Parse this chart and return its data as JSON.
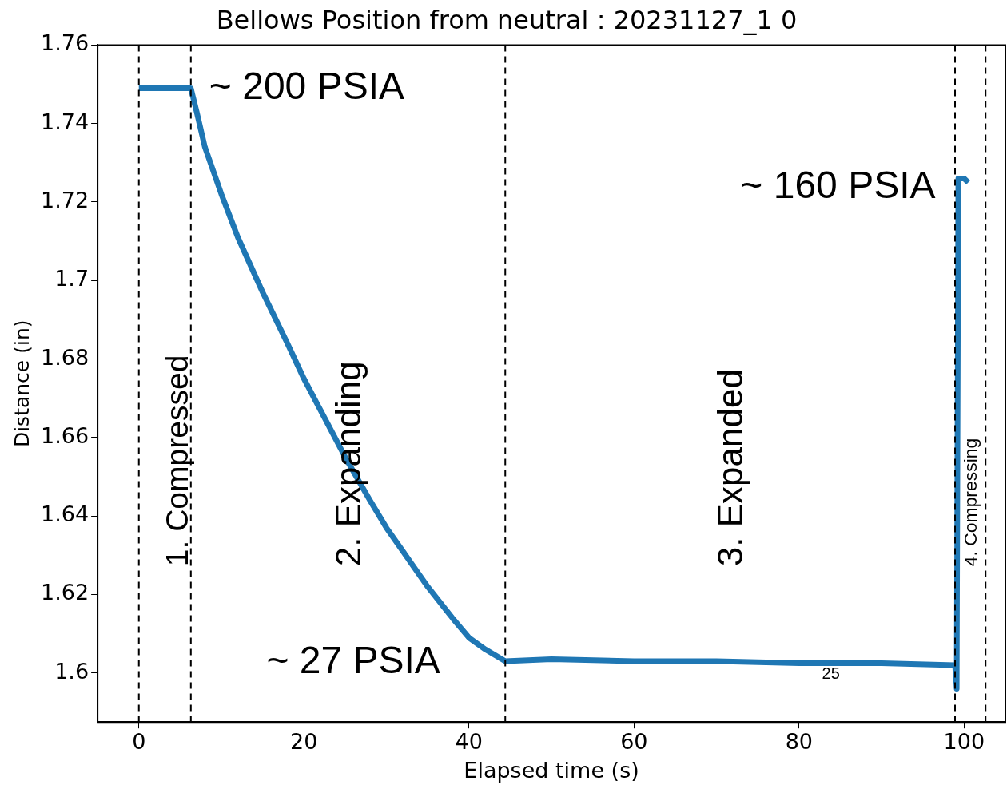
{
  "chart_data": {
    "type": "line",
    "title": "Bellows Position from neutral : 20231127_1 0",
    "xlabel": "Elapsed time (s)",
    "ylabel": "Distance (in)",
    "x": [
      0,
      2,
      4,
      6.3,
      7,
      8,
      10,
      12,
      15,
      18,
      20,
      22,
      25,
      28,
      30,
      33,
      35,
      38,
      40,
      42,
      44.4,
      50,
      60,
      70,
      80,
      90,
      98.9,
      99.1,
      99.3,
      99.6,
      100,
      100.5
    ],
    "series": [
      {
        "color": "#1f77b4",
        "values": [
          1.749,
          1.749,
          1.749,
          1.749,
          1.743,
          1.734,
          1.722,
          1.711,
          1.697,
          1.684,
          1.675,
          1.667,
          1.655,
          1.644,
          1.637,
          1.628,
          1.622,
          1.614,
          1.609,
          1.606,
          1.603,
          1.6035,
          1.603,
          1.603,
          1.6025,
          1.6025,
          1.602,
          1.596,
          1.726,
          1.726,
          1.726,
          1.725
        ]
      }
    ],
    "xlim": [
      -5,
      105
    ],
    "ylim": [
      1.5875,
      1.76
    ],
    "xticks": [
      0,
      20,
      40,
      60,
      80,
      100
    ],
    "yticks": [
      1.6,
      1.62,
      1.64,
      1.66,
      1.68,
      1.7,
      1.72,
      1.74,
      1.76
    ],
    "grid": false,
    "legend": false,
    "marker": "none",
    "line_style": "solid",
    "ref_lines": [
      {
        "axis": "x",
        "value": 0,
        "color": "#000000",
        "line_style": "dashed"
      },
      {
        "axis": "x",
        "value": 6.3,
        "color": "#000000",
        "line_style": "dashed"
      },
      {
        "axis": "x",
        "value": 44.4,
        "color": "#000000",
        "line_style": "dashed"
      },
      {
        "axis": "x",
        "value": 98.9,
        "color": "#000000",
        "line_style": "dashed"
      },
      {
        "axis": "x",
        "value": 102.6,
        "color": "#000000",
        "line_style": "dashed"
      }
    ],
    "annotations": [
      "1. Compressed",
      "2. Expanding",
      "3. Expanded",
      "4. Compressing",
      "~ 200 PSIA",
      "~ 160 PSIA",
      "~ 27 PSIA",
      "25"
    ]
  }
}
